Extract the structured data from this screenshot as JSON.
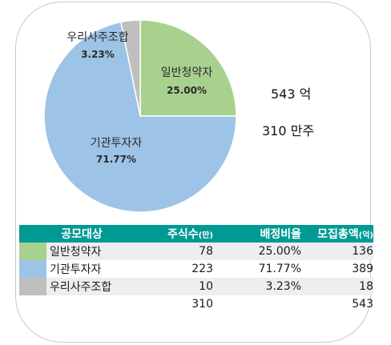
{
  "chart_data": {
    "type": "pie",
    "slices": [
      {
        "label": "일반청약자",
        "value": 25.0,
        "pct_label": "25.00%",
        "color": "#a9d18e"
      },
      {
        "label": "기관투자자",
        "value": 71.77,
        "pct_label": "71.77%",
        "color": "#9dc3e6"
      },
      {
        "label": "우리사주조합",
        "value": 3.23,
        "pct_label": "3.23%",
        "color": "#bfbfbf"
      }
    ]
  },
  "summary": {
    "amount": "543 억",
    "shares": "310 만주"
  },
  "table": {
    "headers": {
      "target": "공모대상",
      "shares": "주식수",
      "shares_unit": "(만)",
      "ratio": "배정비율",
      "amount": "모집총액",
      "amount_unit": "(억)"
    },
    "rows": [
      {
        "name": "일반청약자",
        "shares": "78",
        "ratio": "25.00%",
        "amount": "136",
        "color": "#a9d18e"
      },
      {
        "name": "기관투자자",
        "shares": "223",
        "ratio": "71.77%",
        "amount": "389",
        "color": "#9dc3e6"
      },
      {
        "name": "우리사주조합",
        "shares": "10",
        "ratio": "3.23%",
        "amount": "18",
        "color": "#bfbfbf"
      }
    ],
    "total": {
      "shares": "310",
      "amount": "543"
    }
  }
}
